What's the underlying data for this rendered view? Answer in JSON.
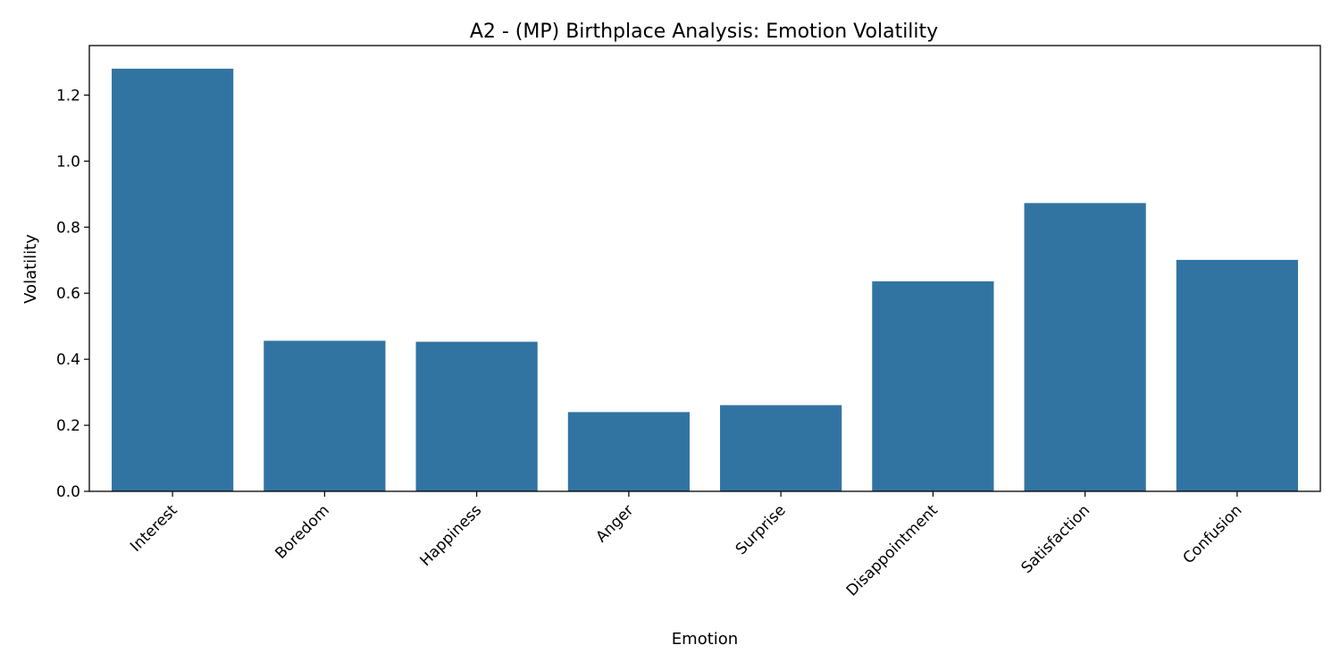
{
  "chart_data": {
    "type": "bar",
    "title": "A2 - (MP) Birthplace Analysis: Emotion Volatility",
    "xlabel": "Emotion",
    "ylabel": "Volatility",
    "categories": [
      "Interest",
      "Boredom",
      "Happiness",
      "Anger",
      "Surprise",
      "Disappointment",
      "Satisfaction",
      "Confusion"
    ],
    "values": [
      1.28,
      0.456,
      0.453,
      0.24,
      0.261,
      0.636,
      0.873,
      0.701
    ],
    "ylim": [
      0,
      1.35
    ],
    "yticks": [
      "0.0",
      "0.2",
      "0.4",
      "0.6",
      "0.8",
      "1.0",
      "1.2"
    ],
    "grid": false,
    "bar_color": "#3274a1"
  }
}
